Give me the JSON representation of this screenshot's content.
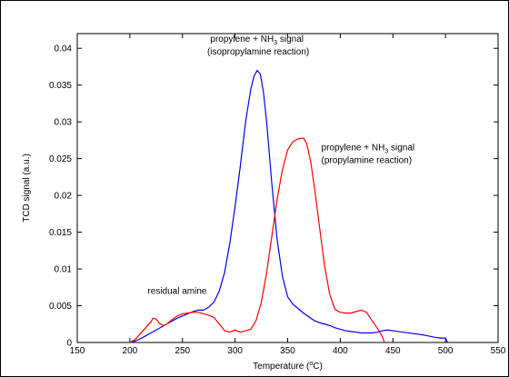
{
  "chart_data": {
    "type": "line",
    "xlabel": "Temperature (°C)",
    "ylabel": "TCD signal (a.u.)",
    "xlim": [
      150,
      550
    ],
    "ylim": [
      0,
      0.042
    ],
    "xticks": [
      "150",
      "200",
      "250",
      "300",
      "350",
      "400",
      "450",
      "500",
      "550"
    ],
    "yticks": [
      "0",
      "0.005",
      "0.01",
      "0.015",
      "0.02",
      "0.025",
      "0.03",
      "0.035",
      "0.04"
    ],
    "grid": false,
    "series": [
      {
        "color": "#0000ff",
        "x": [
          200,
          205,
          210,
          215,
          220,
          225,
          230,
          235,
          240,
          245,
          250,
          255,
          260,
          265,
          270,
          275,
          280,
          285,
          290,
          295,
          300,
          305,
          310,
          315,
          318,
          321,
          324,
          327,
          330,
          335,
          340,
          345,
          350,
          355,
          360,
          365,
          370,
          375,
          380,
          385,
          390,
          395,
          400,
          405,
          410,
          415,
          420,
          425,
          430,
          435,
          440,
          445,
          450,
          460,
          470,
          480,
          490,
          495,
          500,
          502
        ],
        "y": [
          0,
          0.0002,
          0.0005,
          0.0009,
          0.0013,
          0.0017,
          0.0021,
          0.0025,
          0.0029,
          0.0033,
          0.0036,
          0.0039,
          0.0042,
          0.0044,
          0.0044,
          0.0048,
          0.0055,
          0.007,
          0.0095,
          0.0135,
          0.0185,
          0.024,
          0.03,
          0.0345,
          0.0362,
          0.037,
          0.0365,
          0.034,
          0.03,
          0.0215,
          0.014,
          0.009,
          0.0062,
          0.0052,
          0.0046,
          0.004,
          0.0035,
          0.003,
          0.0027,
          0.0025,
          0.0023,
          0.002,
          0.0018,
          0.0016,
          0.0015,
          0.0014,
          0.0013,
          0.0013,
          0.0013,
          0.0014,
          0.0016,
          0.0017,
          0.0016,
          0.0014,
          0.0012,
          0.001,
          0.0007,
          0.0006,
          0.0006,
          0
        ]
      },
      {
        "color": "#ff0000",
        "x": [
          200,
          205,
          210,
          215,
          220,
          222,
          225,
          228,
          232,
          235,
          240,
          245,
          250,
          255,
          260,
          265,
          270,
          275,
          280,
          285,
          290,
          295,
          300,
          305,
          310,
          315,
          320,
          325,
          330,
          335,
          340,
          345,
          350,
          355,
          360,
          365,
          368,
          372,
          376,
          380,
          385,
          390,
          395,
          400,
          405,
          410,
          415,
          420,
          425,
          430,
          435,
          440,
          442
        ],
        "y": [
          0,
          0.0004,
          0.0012,
          0.002,
          0.0028,
          0.0033,
          0.0032,
          0.0026,
          0.0023,
          0.0025,
          0.0031,
          0.0036,
          0.0039,
          0.004,
          0.0041,
          0.0041,
          0.0039,
          0.0037,
          0.0034,
          0.0025,
          0.0016,
          0.0014,
          0.0017,
          0.0014,
          0.0016,
          0.0018,
          0.003,
          0.0055,
          0.0095,
          0.0145,
          0.0195,
          0.0235,
          0.0262,
          0.0273,
          0.0277,
          0.0278,
          0.0271,
          0.0245,
          0.0205,
          0.016,
          0.0105,
          0.0065,
          0.0045,
          0.0041,
          0.004,
          0.004,
          0.0042,
          0.0044,
          0.0041,
          0.003,
          0.002,
          0.0008,
          0
        ]
      }
    ],
    "annotations": [
      {
        "lines": [
          "propylene + NH3 signal",
          "(isopropylamine reaction)"
        ],
        "x": 322,
        "y": 0.04
      },
      {
        "lines": [
          "propylene + NH3 signal",
          "(propylamine reaction)"
        ],
        "x": 382,
        "y": 0.025
      },
      {
        "lines": [
          "residual amine"
        ],
        "x": 245,
        "y": 0.007
      }
    ]
  }
}
